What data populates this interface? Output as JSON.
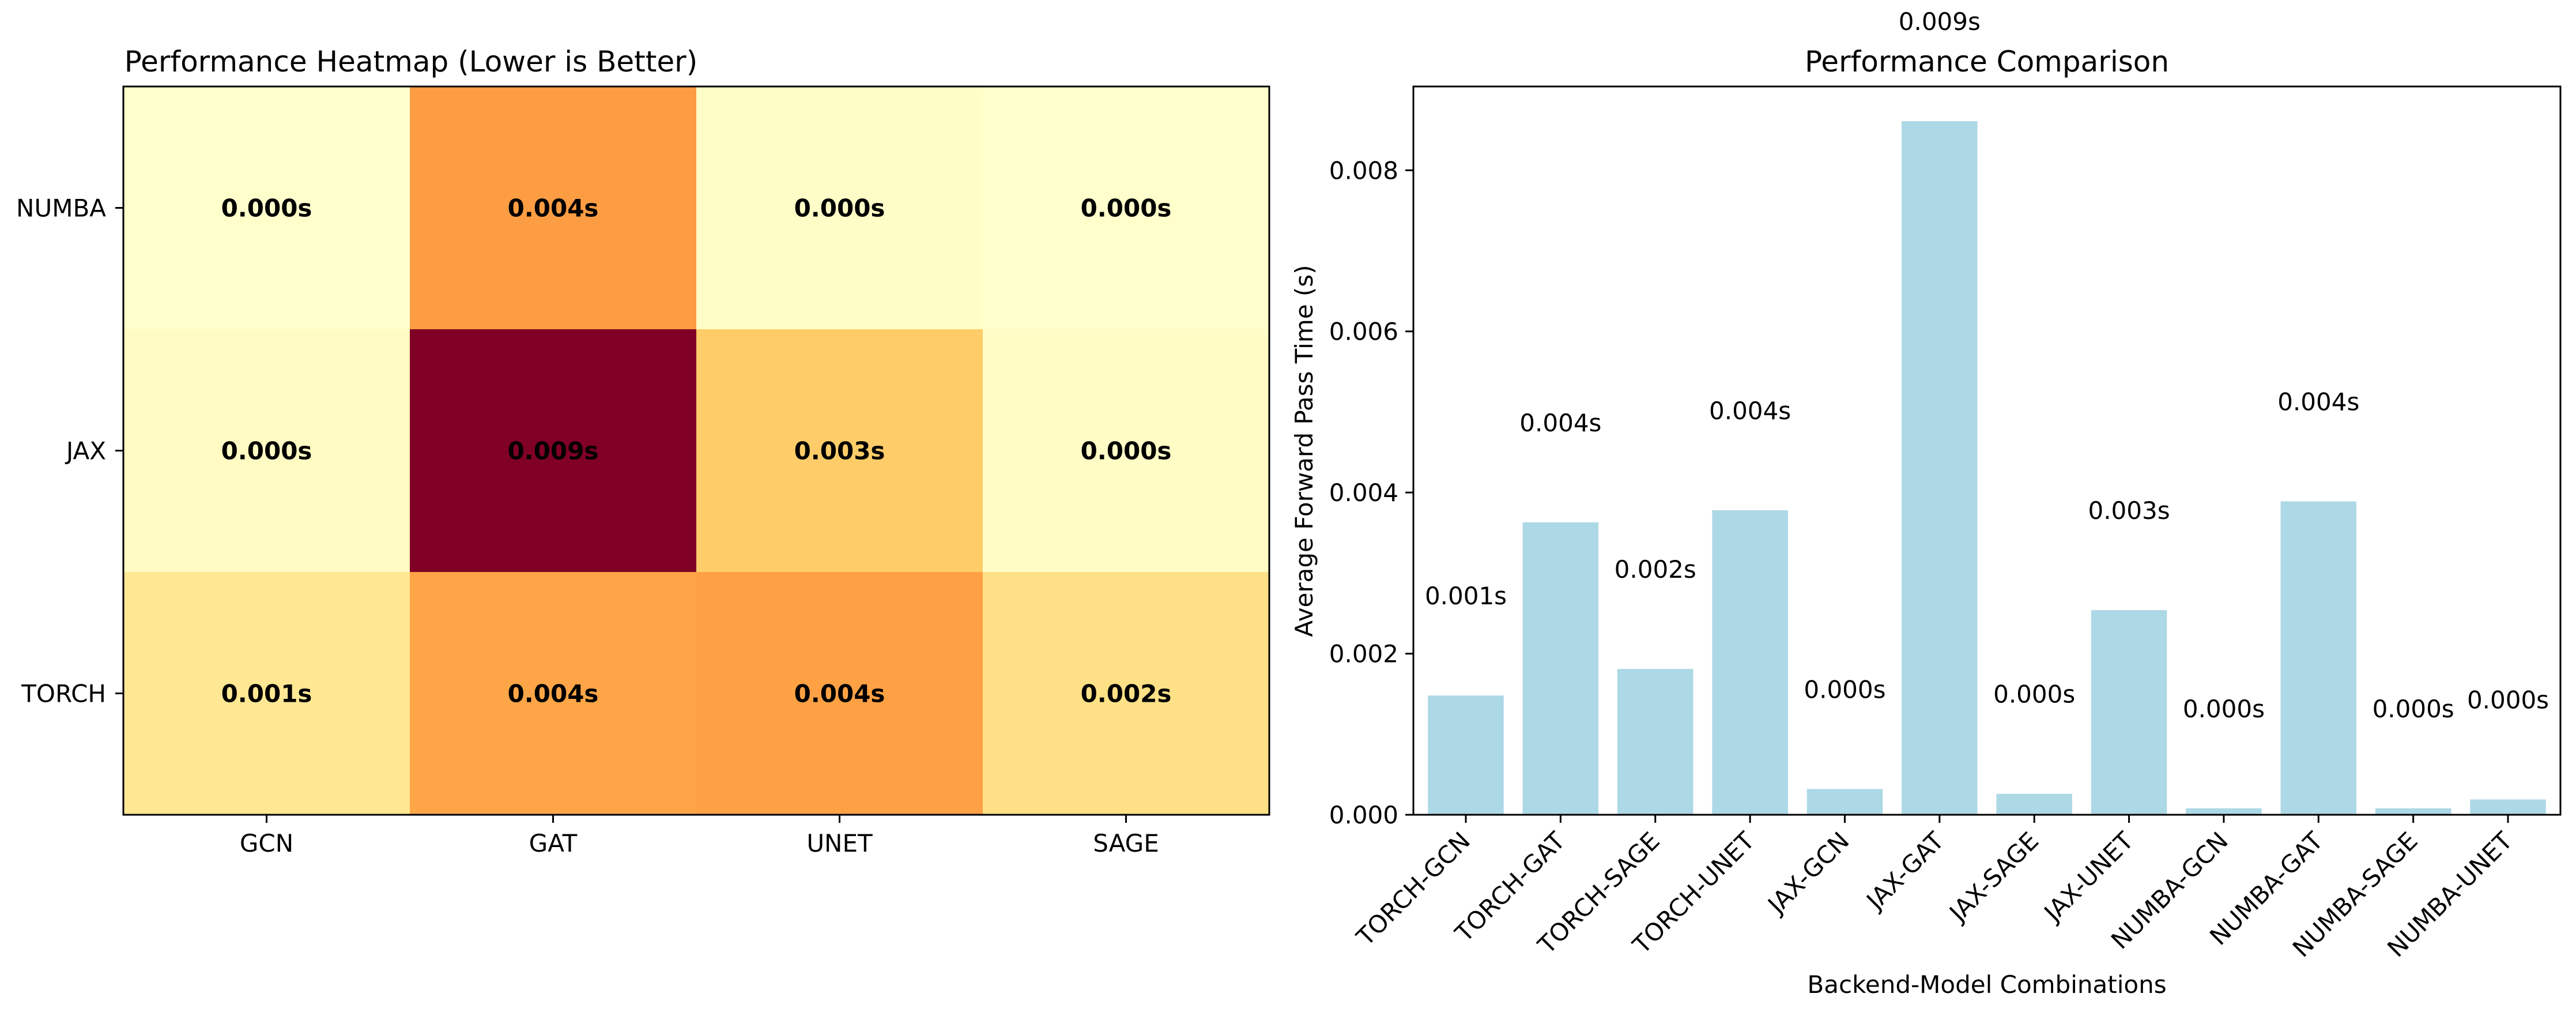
{
  "chart_data": [
    {
      "type": "heatmap",
      "title": "Performance Heatmap (Lower is Better)",
      "rows": [
        "NUMBA",
        "JAX",
        "TORCH"
      ],
      "columns": [
        "GCN",
        "GAT",
        "UNET",
        "SAGE"
      ],
      "values": [
        [
          8e-05,
          0.00389,
          0.00019,
          8e-05
        ],
        [
          0.00032,
          0.00861,
          0.00254,
          0.00026
        ],
        [
          0.00148,
          0.00363,
          0.00378,
          0.00181
        ]
      ],
      "cell_labels": [
        [
          "0.000s",
          "0.004s",
          "0.000s",
          "0.000s"
        ],
        [
          "0.000s",
          "0.009s",
          "0.003s",
          "0.000s"
        ],
        [
          "0.001s",
          "0.004s",
          "0.004s",
          "0.002s"
        ]
      ],
      "colormap": "YlOrRd"
    },
    {
      "type": "bar",
      "title": "Performance Comparison",
      "xlabel": "Backend-Model Combinations",
      "ylabel": "Average Forward Pass Time (s)",
      "ylim": [
        0,
        0.00904
      ],
      "yticks": [
        "0.000",
        "0.002",
        "0.004",
        "0.006",
        "0.008"
      ],
      "bar_color": "#add8e6",
      "categories": [
        "TORCH-GCN",
        "TORCH-GAT",
        "TORCH-SAGE",
        "TORCH-UNET",
        "JAX-GCN",
        "JAX-GAT",
        "JAX-SAGE",
        "JAX-UNET",
        "NUMBA-GCN",
        "NUMBA-GAT",
        "NUMBA-SAGE",
        "NUMBA-UNET"
      ],
      "values": [
        0.00148,
        0.00363,
        0.00181,
        0.00378,
        0.00032,
        0.00861,
        0.00026,
        0.00254,
        8e-05,
        0.00389,
        8e-05,
        0.00019
      ],
      "data_labels": [
        "0.001s",
        "0.004s",
        "0.002s",
        "0.004s",
        "0.000s",
        "0.009s",
        "0.000s",
        "0.003s",
        "0.000s",
        "0.004s",
        "0.000s",
        "0.000s"
      ]
    }
  ]
}
